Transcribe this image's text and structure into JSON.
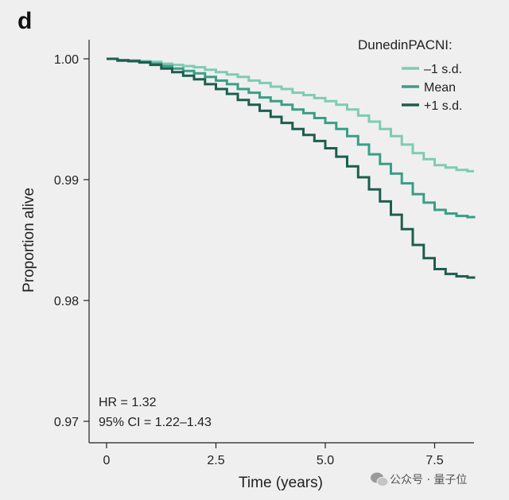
{
  "panel_label": "d",
  "watermark": {
    "text": "公众号 · 量子位",
    "icon": "wechat-icon"
  },
  "chart_data": {
    "type": "line",
    "title": "",
    "xlabel": "Time (years)",
    "ylabel": "Proportion alive",
    "xlim": [
      0,
      8.4
    ],
    "ylim": [
      0.97,
      1.0
    ],
    "x_ticks": [
      0,
      2.5,
      5.0,
      7.5
    ],
    "x_tick_labels": [
      "0",
      "2.5",
      "5.0",
      "7.5"
    ],
    "y_ticks": [
      1.0,
      0.99,
      0.98,
      0.97
    ],
    "y_tick_labels": [
      "1.00",
      "0.99",
      "0.98",
      "0.97"
    ],
    "grid": false,
    "legend": {
      "title": "DunedinPACNI:",
      "placement": "top-right"
    },
    "annotations": [
      "HR = 1.32",
      "95% CI = 1.22–1.43"
    ],
    "series": [
      {
        "name": "–1 s.d.",
        "color": "#7fcbb4",
        "x": [
          0,
          0.25,
          0.5,
          0.75,
          1.0,
          1.25,
          1.5,
          1.75,
          2.0,
          2.25,
          2.5,
          2.75,
          3.0,
          3.25,
          3.5,
          3.75,
          4.0,
          4.25,
          4.5,
          4.75,
          5.0,
          5.25,
          5.5,
          5.75,
          6.0,
          6.25,
          6.5,
          6.75,
          7.0,
          7.25,
          7.5,
          7.75,
          8.0,
          8.25,
          8.4
        ],
        "y": [
          1.0,
          0.9999,
          0.99985,
          0.9998,
          0.99975,
          0.9996,
          0.9995,
          0.9994,
          0.9993,
          0.9991,
          0.9989,
          0.9987,
          0.9985,
          0.9982,
          0.998,
          0.9977,
          0.9975,
          0.9972,
          0.997,
          0.99675,
          0.9965,
          0.9962,
          0.9958,
          0.9953,
          0.9948,
          0.9942,
          0.9936,
          0.9929,
          0.9922,
          0.9917,
          0.9912,
          0.991,
          0.9908,
          0.9907,
          0.9907
        ]
      },
      {
        "name": "Mean",
        "color": "#3a9e86",
        "x": [
          0,
          0.25,
          0.5,
          0.75,
          1.0,
          1.25,
          1.5,
          1.75,
          2.0,
          2.25,
          2.5,
          2.75,
          3.0,
          3.25,
          3.5,
          3.75,
          4.0,
          4.25,
          4.5,
          4.75,
          5.0,
          5.25,
          5.5,
          5.75,
          6.0,
          6.25,
          6.5,
          6.75,
          7.0,
          7.25,
          7.5,
          7.75,
          8.0,
          8.25,
          8.4
        ],
        "y": [
          1.0,
          0.9999,
          0.99985,
          0.99975,
          0.9996,
          0.9994,
          0.9992,
          0.999,
          0.9988,
          0.9985,
          0.9982,
          0.9979,
          0.9975,
          0.9972,
          0.9968,
          0.9965,
          0.9962,
          0.9958,
          0.9955,
          0.9951,
          0.9947,
          0.9942,
          0.9936,
          0.9929,
          0.9921,
          0.9913,
          0.9905,
          0.9897,
          0.9888,
          0.9881,
          0.9875,
          0.9872,
          0.987,
          0.9869,
          0.9868
        ]
      },
      {
        "name": "+1 s.d.",
        "color": "#1d5e4e",
        "x": [
          0,
          0.25,
          0.5,
          0.75,
          1.0,
          1.25,
          1.5,
          1.75,
          2.0,
          2.25,
          2.5,
          2.75,
          3.0,
          3.25,
          3.5,
          3.75,
          4.0,
          4.25,
          4.5,
          4.75,
          5.0,
          5.25,
          5.5,
          5.75,
          6.0,
          6.25,
          6.5,
          6.75,
          7.0,
          7.25,
          7.5,
          7.75,
          8.0,
          8.25,
          8.4
        ],
        "y": [
          1.0,
          0.99985,
          0.9998,
          0.9997,
          0.9995,
          0.9992,
          0.9989,
          0.9986,
          0.9983,
          0.9979,
          0.9975,
          0.9971,
          0.9966,
          0.9962,
          0.9957,
          0.9952,
          0.9947,
          0.9942,
          0.9937,
          0.9932,
          0.9926,
          0.9919,
          0.9911,
          0.9902,
          0.9892,
          0.9882,
          0.9871,
          0.9859,
          0.9846,
          0.9835,
          0.9826,
          0.9822,
          0.982,
          0.9819,
          0.9818
        ]
      }
    ]
  }
}
